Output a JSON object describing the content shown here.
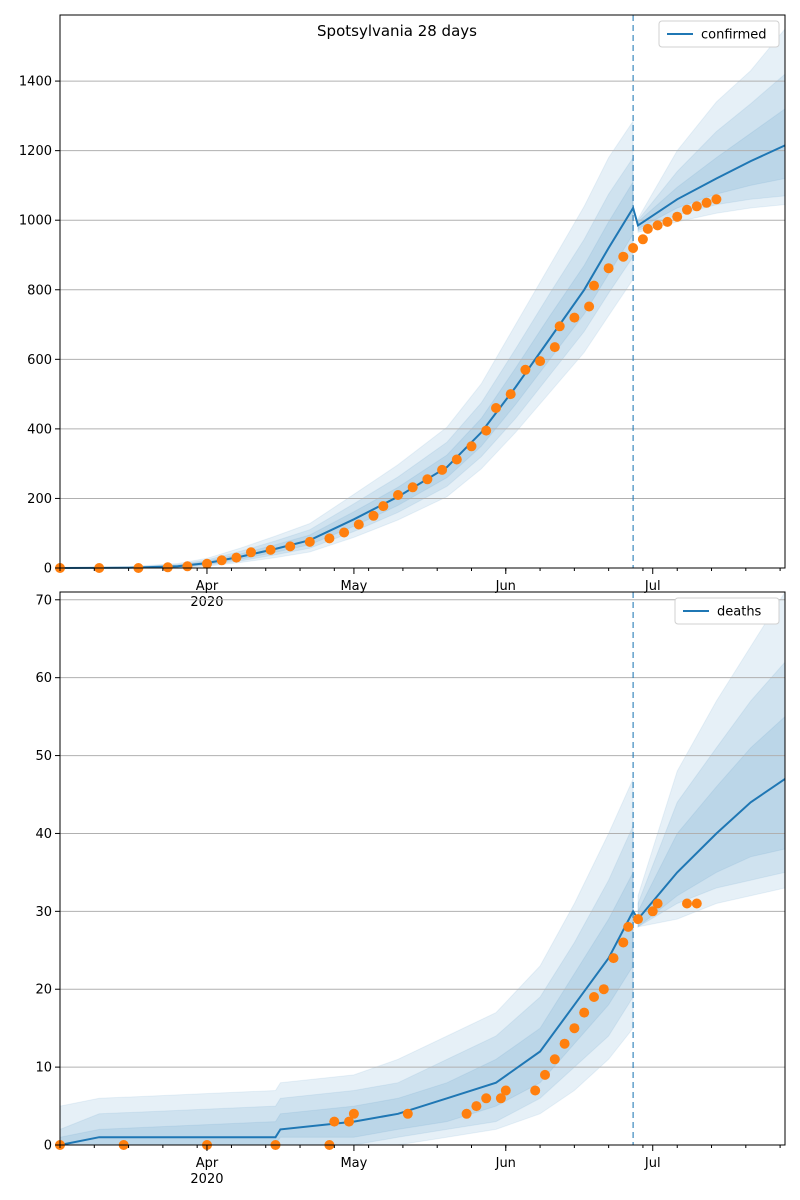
{
  "figure": {
    "title": "Spotsylvania 28 days"
  },
  "colors": {
    "model_line": "#1f77b4",
    "observed": "#ff7f0e",
    "band": "#1f77b4",
    "grid": "#b0b0b0",
    "vline": "#1f77b4"
  },
  "chart_data": [
    {
      "id": "confirmed",
      "type": "line",
      "title": "Spotsylvania 28 days",
      "legend": {
        "label": "confirmed",
        "placement": "top-right"
      },
      "ylim": [
        0,
        1590
      ],
      "yticks": [
        0,
        200,
        400,
        600,
        800,
        1000,
        1200,
        1400
      ],
      "xlim": [
        "2020-03-02",
        "2020-07-28"
      ],
      "xticks": [
        {
          "date": "2020-04-01",
          "label": "Apr",
          "sublabel": "2020"
        },
        {
          "date": "2020-05-01",
          "label": "May",
          "sublabel": ""
        },
        {
          "date": "2020-06-01",
          "label": "Jun",
          "sublabel": ""
        },
        {
          "date": "2020-07-01",
          "label": "Jul",
          "sublabel": ""
        }
      ],
      "forecast_start": "2020-06-27",
      "grid": "y",
      "model": [
        {
          "date": "2020-03-02",
          "median": 0,
          "b1": [
            0,
            0
          ],
          "b2": [
            0,
            0
          ],
          "b3": [
            0,
            0
          ]
        },
        {
          "date": "2020-03-16",
          "median": 1,
          "b1": [
            0,
            2
          ],
          "b2": [
            0,
            3
          ],
          "b3": [
            0,
            4
          ]
        },
        {
          "date": "2020-03-26",
          "median": 5,
          "b1": [
            3,
            8
          ],
          "b2": [
            2,
            10
          ],
          "b3": [
            1,
            13
          ]
        },
        {
          "date": "2020-04-01",
          "median": 14,
          "b1": [
            10,
            19
          ],
          "b2": [
            8,
            23
          ],
          "b3": [
            5,
            28
          ]
        },
        {
          "date": "2020-04-08",
          "median": 33,
          "b1": [
            26,
            41
          ],
          "b2": [
            21,
            49
          ],
          "b3": [
            16,
            58
          ]
        },
        {
          "date": "2020-04-15",
          "median": 55,
          "b1": [
            45,
            67
          ],
          "b2": [
            38,
            78
          ],
          "b3": [
            30,
            92
          ]
        },
        {
          "date": "2020-04-22",
          "median": 80,
          "b1": [
            67,
            95
          ],
          "b2": [
            57,
            110
          ],
          "b3": [
            46,
            128
          ]
        },
        {
          "date": "2020-05-01",
          "median": 140,
          "b1": [
            120,
            162
          ],
          "b2": [
            105,
            185
          ],
          "b3": [
            88,
            212
          ]
        },
        {
          "date": "2020-05-10",
          "median": 205,
          "b1": [
            180,
            232
          ],
          "b2": [
            160,
            262
          ],
          "b3": [
            138,
            297
          ]
        },
        {
          "date": "2020-05-20",
          "median": 290,
          "b1": [
            260,
            325
          ],
          "b2": [
            235,
            362
          ],
          "b3": [
            205,
            405
          ]
        },
        {
          "date": "2020-05-27",
          "median": 390,
          "b1": [
            350,
            430
          ],
          "b2": [
            320,
            475
          ],
          "b3": [
            285,
            530
          ]
        },
        {
          "date": "2020-06-03",
          "median": 520,
          "b1": [
            470,
            575
          ],
          "b2": [
            430,
            630
          ],
          "b3": [
            390,
            700
          ]
        },
        {
          "date": "2020-06-10",
          "median": 660,
          "b1": [
            600,
            725
          ],
          "b2": [
            555,
            790
          ],
          "b3": [
            505,
            870
          ]
        },
        {
          "date": "2020-06-17",
          "median": 800,
          "b1": [
            730,
            870
          ],
          "b2": [
            680,
            945
          ],
          "b3": [
            620,
            1040
          ]
        },
        {
          "date": "2020-06-22",
          "median": 920,
          "b1": [
            845,
            995
          ],
          "b2": [
            790,
            1075
          ],
          "b3": [
            725,
            1180
          ]
        },
        {
          "date": "2020-06-27",
          "median": 1035,
          "b1": [
            960,
            1110
          ],
          "b2": [
            895,
            1180
          ],
          "b3": [
            830,
            1285
          ]
        },
        {
          "date": "2020-06-28",
          "median": 985,
          "b1": [
            975,
            995
          ],
          "b2": [
            970,
            1000
          ],
          "b3": [
            965,
            1005
          ]
        },
        {
          "date": "2020-07-06",
          "median": 1060,
          "b1": [
            1035,
            1095
          ],
          "b2": [
            1015,
            1140
          ],
          "b3": [
            995,
            1200
          ]
        },
        {
          "date": "2020-07-14",
          "median": 1120,
          "b1": [
            1075,
            1180
          ],
          "b2": [
            1045,
            1255
          ],
          "b3": [
            1020,
            1340
          ]
        },
        {
          "date": "2020-07-21",
          "median": 1170,
          "b1": [
            1100,
            1250
          ],
          "b2": [
            1060,
            1335
          ],
          "b3": [
            1035,
            1430
          ]
        },
        {
          "date": "2020-07-28",
          "median": 1215,
          "b1": [
            1120,
            1320
          ],
          "b2": [
            1070,
            1420
          ],
          "b3": [
            1045,
            1550
          ]
        }
      ],
      "observed": [
        {
          "date": "2020-03-02",
          "value": 0
        },
        {
          "date": "2020-03-10",
          "value": 0
        },
        {
          "date": "2020-03-18",
          "value": 0
        },
        {
          "date": "2020-03-24",
          "value": 2
        },
        {
          "date": "2020-03-28",
          "value": 5
        },
        {
          "date": "2020-04-01",
          "value": 12
        },
        {
          "date": "2020-04-04",
          "value": 22
        },
        {
          "date": "2020-04-07",
          "value": 30
        },
        {
          "date": "2020-04-10",
          "value": 45
        },
        {
          "date": "2020-04-14",
          "value": 52
        },
        {
          "date": "2020-04-18",
          "value": 62
        },
        {
          "date": "2020-04-22",
          "value": 75
        },
        {
          "date": "2020-04-26",
          "value": 85
        },
        {
          "date": "2020-04-29",
          "value": 102
        },
        {
          "date": "2020-05-02",
          "value": 125
        },
        {
          "date": "2020-05-05",
          "value": 150
        },
        {
          "date": "2020-05-07",
          "value": 178
        },
        {
          "date": "2020-05-10",
          "value": 210
        },
        {
          "date": "2020-05-13",
          "value": 232
        },
        {
          "date": "2020-05-16",
          "value": 255
        },
        {
          "date": "2020-05-19",
          "value": 282
        },
        {
          "date": "2020-05-22",
          "value": 312
        },
        {
          "date": "2020-05-25",
          "value": 350
        },
        {
          "date": "2020-05-28",
          "value": 395
        },
        {
          "date": "2020-05-30",
          "value": 460
        },
        {
          "date": "2020-06-02",
          "value": 500
        },
        {
          "date": "2020-06-05",
          "value": 570
        },
        {
          "date": "2020-06-08",
          "value": 595
        },
        {
          "date": "2020-06-11",
          "value": 635
        },
        {
          "date": "2020-06-12",
          "value": 695
        },
        {
          "date": "2020-06-15",
          "value": 720
        },
        {
          "date": "2020-06-18",
          "value": 752
        },
        {
          "date": "2020-06-19",
          "value": 812
        },
        {
          "date": "2020-06-22",
          "value": 862
        },
        {
          "date": "2020-06-25",
          "value": 895
        },
        {
          "date": "2020-06-27",
          "value": 920
        },
        {
          "date": "2020-06-29",
          "value": 945
        },
        {
          "date": "2020-06-30",
          "value": 975
        },
        {
          "date": "2020-07-02",
          "value": 985
        },
        {
          "date": "2020-07-04",
          "value": 995
        },
        {
          "date": "2020-07-06",
          "value": 1010
        },
        {
          "date": "2020-07-08",
          "value": 1030
        },
        {
          "date": "2020-07-10",
          "value": 1040
        },
        {
          "date": "2020-07-12",
          "value": 1050
        },
        {
          "date": "2020-07-14",
          "value": 1060
        }
      ]
    },
    {
      "id": "deaths",
      "type": "line",
      "title": "",
      "legend": {
        "label": "deaths",
        "placement": "top-right"
      },
      "ylim": [
        0,
        71
      ],
      "yticks": [
        0,
        10,
        20,
        30,
        40,
        50,
        60,
        70
      ],
      "xlim": [
        "2020-03-02",
        "2020-07-28"
      ],
      "xticks": [
        {
          "date": "2020-04-01",
          "label": "Apr",
          "sublabel": "2020"
        },
        {
          "date": "2020-05-01",
          "label": "May",
          "sublabel": ""
        },
        {
          "date": "2020-06-01",
          "label": "Jun",
          "sublabel": ""
        },
        {
          "date": "2020-07-01",
          "label": "Jul",
          "sublabel": ""
        }
      ],
      "forecast_start": "2020-06-27",
      "grid": "y",
      "model": [
        {
          "date": "2020-03-02",
          "median": 0,
          "b1": [
            0,
            1
          ],
          "b2": [
            0,
            2
          ],
          "b3": [
            0,
            5
          ]
        },
        {
          "date": "2020-03-10",
          "median": 1,
          "b1": [
            0,
            2
          ],
          "b2": [
            0,
            4
          ],
          "b3": [
            0,
            6
          ]
        },
        {
          "date": "2020-04-15",
          "median": 1,
          "b1": [
            0,
            3
          ],
          "b2": [
            0,
            5
          ],
          "b3": [
            0,
            7
          ]
        },
        {
          "date": "2020-04-16",
          "median": 2,
          "b1": [
            1,
            4
          ],
          "b2": [
            0,
            6
          ],
          "b3": [
            0,
            8
          ]
        },
        {
          "date": "2020-05-01",
          "median": 3,
          "b1": [
            1,
            5
          ],
          "b2": [
            0,
            7
          ],
          "b3": [
            0,
            9
          ]
        },
        {
          "date": "2020-05-10",
          "median": 4,
          "b1": [
            2,
            6
          ],
          "b2": [
            1,
            8
          ],
          "b3": [
            0,
            11
          ]
        },
        {
          "date": "2020-05-20",
          "median": 6,
          "b1": [
            3,
            8
          ],
          "b2": [
            2,
            11
          ],
          "b3": [
            1,
            14
          ]
        },
        {
          "date": "2020-05-30",
          "median": 8,
          "b1": [
            5,
            11
          ],
          "b2": [
            3,
            14
          ],
          "b3": [
            2,
            17
          ]
        },
        {
          "date": "2020-06-08",
          "median": 12,
          "b1": [
            8,
            15
          ],
          "b2": [
            6,
            19
          ],
          "b3": [
            4,
            23
          ]
        },
        {
          "date": "2020-06-15",
          "median": 18,
          "b1": [
            13,
            22
          ],
          "b2": [
            10,
            26
          ],
          "b3": [
            7,
            31
          ]
        },
        {
          "date": "2020-06-22",
          "median": 24,
          "b1": [
            18,
            29
          ],
          "b2": [
            14,
            34
          ],
          "b3": [
            11,
            40
          ]
        },
        {
          "date": "2020-06-27",
          "median": 30,
          "b1": [
            23,
            35
          ],
          "b2": [
            19,
            41
          ],
          "b3": [
            15,
            47
          ]
        },
        {
          "date": "2020-06-28",
          "median": 29,
          "b1": [
            28,
            30
          ],
          "b2": [
            28,
            31
          ],
          "b3": [
            28,
            32
          ]
        },
        {
          "date": "2020-07-06",
          "median": 35,
          "b1": [
            32,
            40
          ],
          "b2": [
            31,
            44
          ],
          "b3": [
            29,
            48
          ]
        },
        {
          "date": "2020-07-14",
          "median": 40,
          "b1": [
            35,
            46
          ],
          "b2": [
            33,
            51
          ],
          "b3": [
            31,
            57
          ]
        },
        {
          "date": "2020-07-21",
          "median": 44,
          "b1": [
            37,
            51
          ],
          "b2": [
            34,
            57
          ],
          "b3": [
            32,
            64
          ]
        },
        {
          "date": "2020-07-28",
          "median": 47,
          "b1": [
            38,
            55
          ],
          "b2": [
            35,
            62
          ],
          "b3": [
            33,
            71
          ]
        }
      ],
      "observed": [
        {
          "date": "2020-03-02",
          "value": 0
        },
        {
          "date": "2020-03-15",
          "value": 0
        },
        {
          "date": "2020-04-01",
          "value": 0
        },
        {
          "date": "2020-04-15",
          "value": 0
        },
        {
          "date": "2020-04-26",
          "value": 0
        },
        {
          "date": "2020-04-27",
          "value": 3
        },
        {
          "date": "2020-04-30",
          "value": 3
        },
        {
          "date": "2020-05-01",
          "value": 4
        },
        {
          "date": "2020-05-12",
          "value": 4
        },
        {
          "date": "2020-05-24",
          "value": 4
        },
        {
          "date": "2020-05-26",
          "value": 5
        },
        {
          "date": "2020-05-28",
          "value": 6
        },
        {
          "date": "2020-05-31",
          "value": 6
        },
        {
          "date": "2020-06-01",
          "value": 7
        },
        {
          "date": "2020-06-07",
          "value": 7
        },
        {
          "date": "2020-06-09",
          "value": 9
        },
        {
          "date": "2020-06-11",
          "value": 11
        },
        {
          "date": "2020-06-13",
          "value": 13
        },
        {
          "date": "2020-06-15",
          "value": 15
        },
        {
          "date": "2020-06-17",
          "value": 17
        },
        {
          "date": "2020-06-19",
          "value": 19
        },
        {
          "date": "2020-06-21",
          "value": 20
        },
        {
          "date": "2020-06-23",
          "value": 24
        },
        {
          "date": "2020-06-25",
          "value": 26
        },
        {
          "date": "2020-06-26",
          "value": 28
        },
        {
          "date": "2020-06-28",
          "value": 29
        },
        {
          "date": "2020-07-01",
          "value": 30
        },
        {
          "date": "2020-07-02",
          "value": 31
        },
        {
          "date": "2020-07-08",
          "value": 31
        },
        {
          "date": "2020-07-10",
          "value": 31
        }
      ]
    }
  ]
}
